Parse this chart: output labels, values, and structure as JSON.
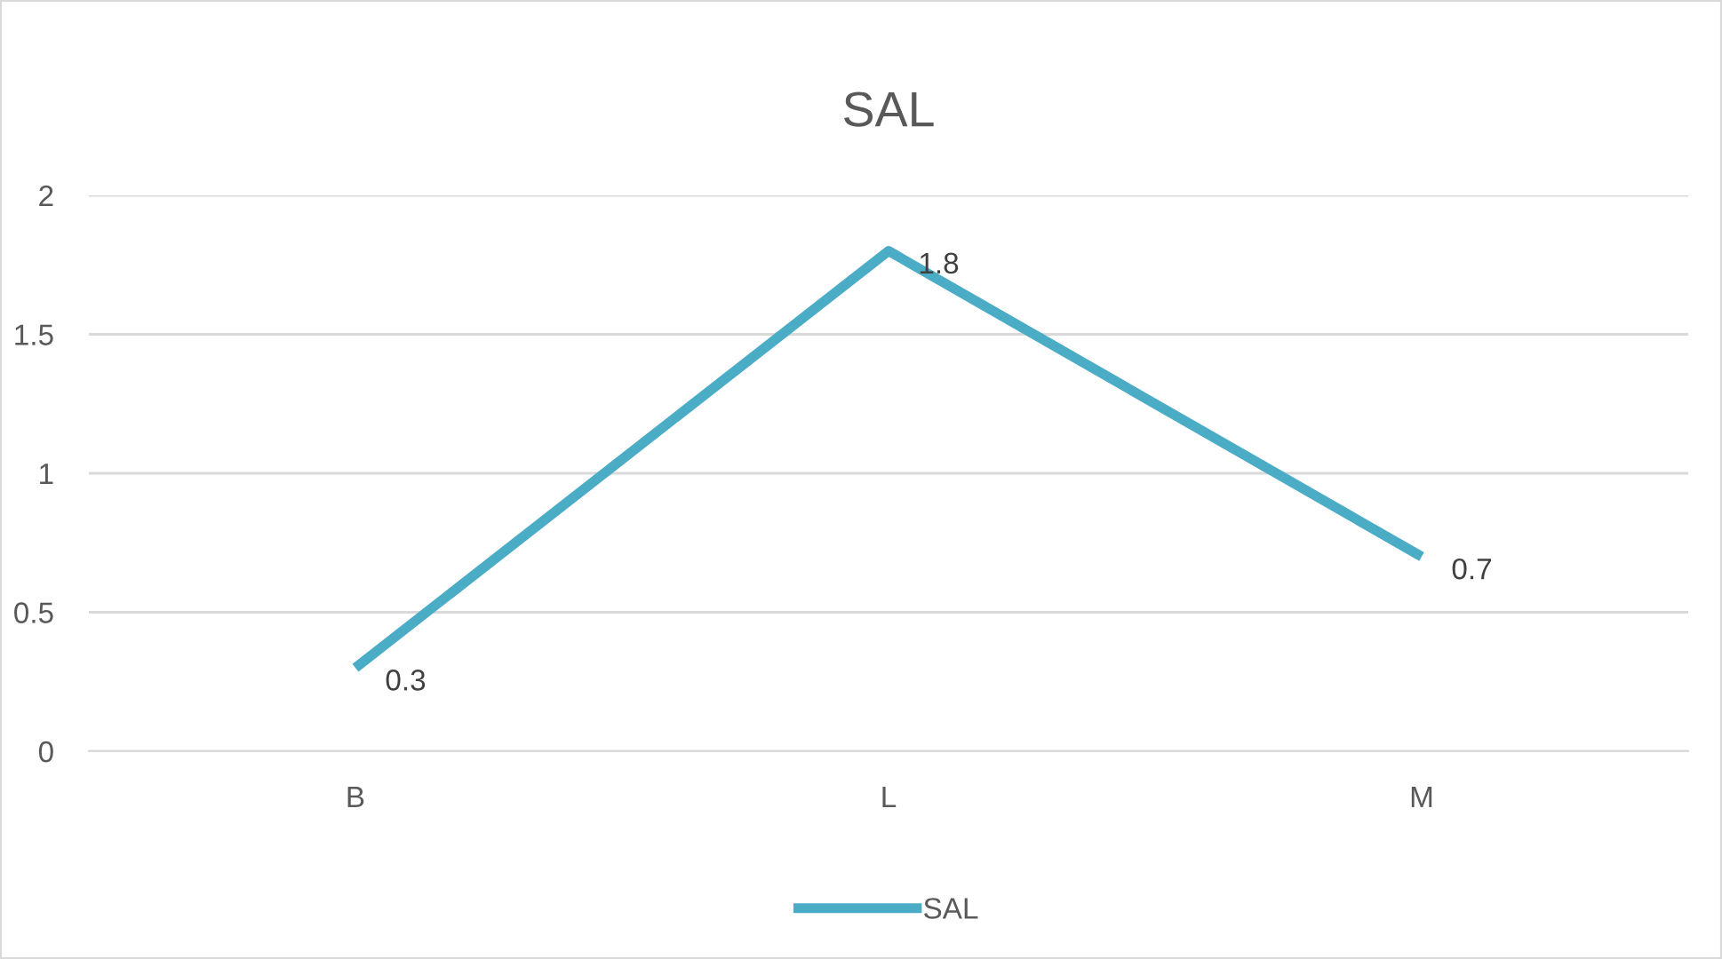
{
  "chart_data": {
    "type": "line",
    "title": "SAL",
    "categories": [
      "B",
      "L",
      "M"
    ],
    "series": [
      {
        "name": "SAL",
        "color": "#4bacc6",
        "values": [
          0.3,
          1.8,
          0.7
        ]
      }
    ],
    "ylim": [
      0,
      2
    ],
    "yticks": [
      0,
      {
        "value": 0.5,
        "label": "0.5"
      },
      1,
      {
        "value": 1.5,
        "label": "1.5"
      },
      2
    ],
    "grid": "y",
    "legend": "bottom",
    "data_labels": true,
    "marker": "none",
    "line_style": "solid"
  }
}
